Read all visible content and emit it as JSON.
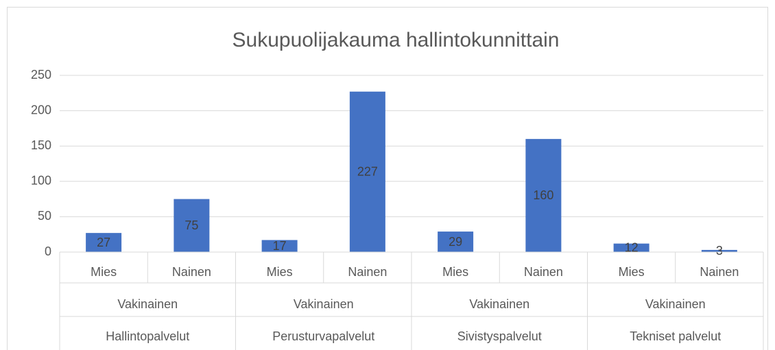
{
  "chart_data": {
    "type": "bar",
    "title": "Sukupuolijakauma hallintokunnittain",
    "categories": [
      "Mies",
      "Nainen",
      "Mies",
      "Nainen",
      "Mies",
      "Nainen",
      "Mies",
      "Nainen"
    ],
    "category_levels": [
      [
        "Vakinainen",
        "Vakinainen",
        "Vakinainen",
        "Vakinainen"
      ],
      [
        "Hallintopalvelut",
        "Perusturvapalvelut",
        "Sivistyspalvelut",
        "Tekniset palvelut"
      ]
    ],
    "values": [
      27,
      75,
      17,
      227,
      29,
      160,
      12,
      3
    ],
    "color": "#4472c4",
    "ylim": [
      0,
      250
    ],
    "yticks": [
      0,
      50,
      100,
      150,
      200,
      250
    ],
    "grid": true
  }
}
